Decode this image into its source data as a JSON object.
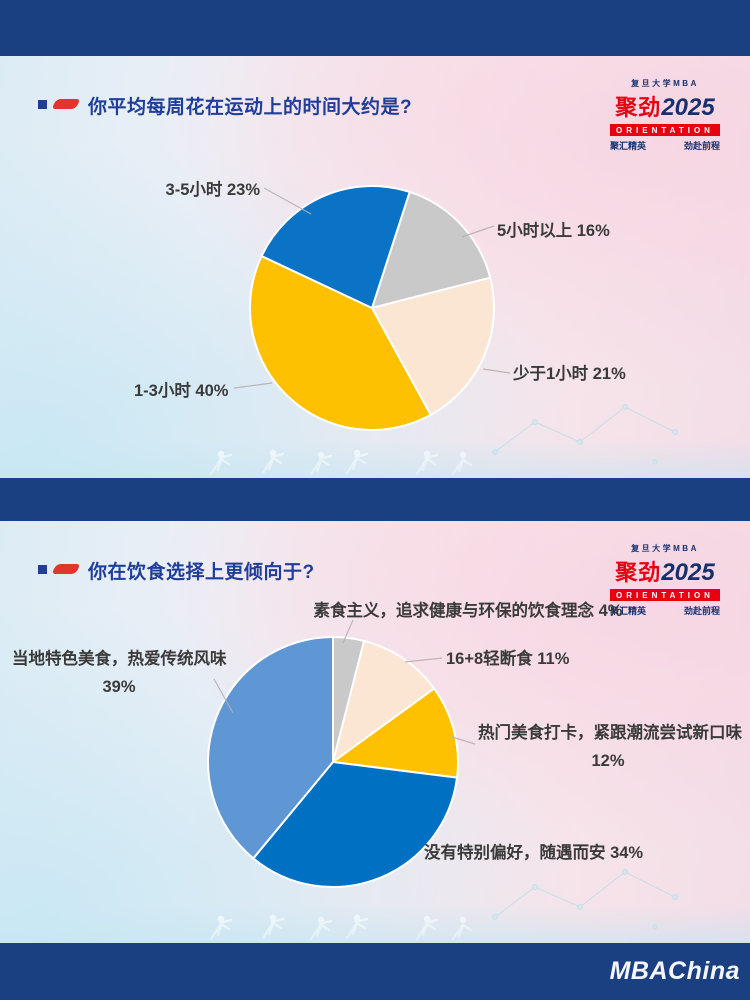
{
  "branding": {
    "school": "复旦大学MBA",
    "brand": "聚劲",
    "year": "2025",
    "banner": "ORIENTATION",
    "slogan_left": "聚汇精英",
    "slogan_right": "劲赴前程",
    "watermark": "MBAChina"
  },
  "slide1": {
    "title": "你平均每周花在运动上的时间大约是?",
    "labels": {
      "blue": "3-5小时 23%",
      "gray": "5小时以上 16%",
      "peach": "少于1小时 21%",
      "yellow": "1-3小时 40%"
    }
  },
  "slide2": {
    "title": "你在饮食选择上更倾向于?",
    "labels": {
      "gray": "素食主义，追求健康与环保的饮食理念 4%",
      "peach": "16+8轻断食 11%",
      "yellow_line1": "热门美食打卡，紧跟潮流尝试新口味",
      "yellow_line2": "12%",
      "darkblue": "没有特别偏好，随遇而安 34%",
      "lightblue_line1": "当地特色美食，热爱传统风味",
      "lightblue_line2": "39%"
    }
  },
  "chart_data": [
    {
      "type": "pie",
      "title": "你平均每周花在运动上的时间大约是?",
      "start_angle_deg": 18,
      "legend_position": "callout-labels",
      "slices": [
        {
          "label": "5小时以上",
          "value_pct": 16,
          "color": "#c9c9ca"
        },
        {
          "label": "少于1小时",
          "value_pct": 21,
          "color": "#fbe5d3"
        },
        {
          "label": "1-3小时",
          "value_pct": 40,
          "color": "#fdc101"
        },
        {
          "label": "3-5小时",
          "value_pct": 23,
          "color": "#0a73c5"
        }
      ]
    },
    {
      "type": "pie",
      "title": "你在饮食选择上更倾向于?",
      "start_angle_deg": 0,
      "legend_position": "callout-labels",
      "slices": [
        {
          "label": "素食主义，追求健康与环保的饮食理念",
          "value_pct": 4,
          "color": "#c9c9ca"
        },
        {
          "label": "16+8轻断食",
          "value_pct": 11,
          "color": "#fbe5d3"
        },
        {
          "label": "热门美食打卡，紧跟潮流尝试新口味",
          "value_pct": 12,
          "color": "#fdc101"
        },
        {
          "label": "没有特别偏好，随遇而安",
          "value_pct": 34,
          "color": "#0071c2"
        },
        {
          "label": "当地特色美食，热爱传统风味",
          "value_pct": 39,
          "color": "#5e97d4"
        }
      ]
    }
  ]
}
